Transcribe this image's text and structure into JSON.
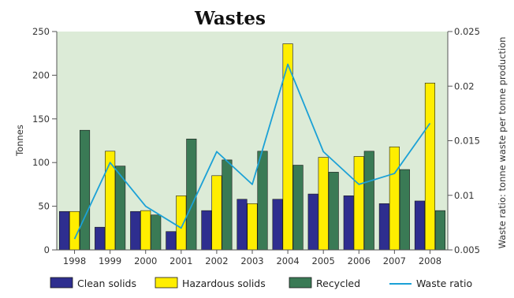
{
  "chart_data": {
    "type": "bar",
    "title": "Wastes",
    "xlabel": "",
    "ylabel": "Tonnes",
    "y2label": "Waste ratio: tonne waste per tonne production",
    "categories": [
      "1998",
      "1999",
      "2000",
      "2001",
      "2002",
      "2003",
      "2004",
      "2005",
      "2006",
      "2007",
      "2008"
    ],
    "ylim": [
      0,
      250
    ],
    "yticks": [
      0,
      50,
      100,
      150,
      200,
      250
    ],
    "y2lim": [
      0.005,
      0.025
    ],
    "y2ticks": [
      "0.005",
      "0.01",
      "0.015",
      "0.02",
      "0.025"
    ],
    "grid": false,
    "legend_position": "bottom",
    "series": [
      {
        "name": "Clean solids",
        "kind": "bar",
        "axis": "left",
        "color": "#2e2e8f",
        "values": [
          44,
          26,
          44,
          21,
          45,
          58,
          58,
          64,
          62,
          53,
          56
        ]
      },
      {
        "name": "Hazardous solids",
        "kind": "bar",
        "axis": "left",
        "color": "#ffee00",
        "values": [
          44,
          113,
          45,
          62,
          85,
          53,
          236,
          106,
          107,
          118,
          191
        ]
      },
      {
        "name": "Recycled",
        "kind": "bar",
        "axis": "left",
        "color": "#3a7a55",
        "values": [
          137,
          96,
          40,
          127,
          103,
          113,
          97,
          89,
          113,
          92,
          45
        ]
      },
      {
        "name": "Waste ratio",
        "kind": "line",
        "axis": "right",
        "color": "#1ba1d6",
        "values": [
          0.006,
          0.013,
          0.009,
          0.007,
          0.014,
          0.011,
          0.022,
          0.014,
          0.011,
          0.012,
          0.0166
        ]
      }
    ],
    "colors": {
      "plot_background": "#dcebd7",
      "axis": "#555555"
    }
  }
}
